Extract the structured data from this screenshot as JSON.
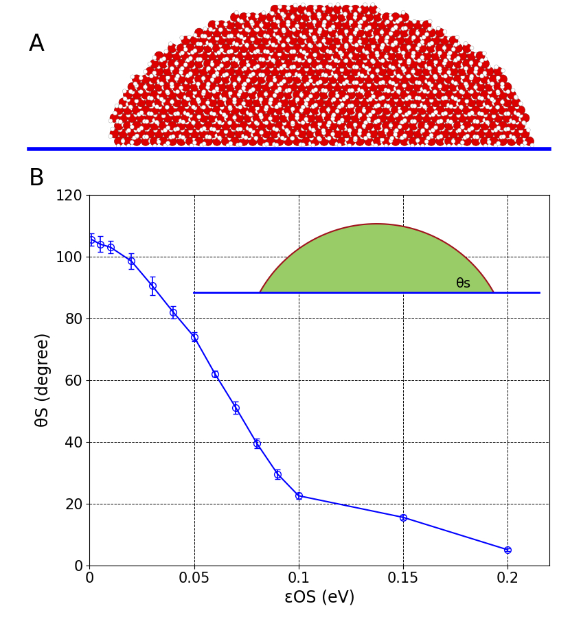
{
  "panel_labels": [
    "A",
    "B"
  ],
  "chart_data": {
    "type": "line",
    "xlabel": "εOS (eV)",
    "ylabel": "θS (degree)",
    "inset_label": "θs",
    "x": [
      0.001,
      0.005,
      0.01,
      0.02,
      0.03,
      0.04,
      0.05,
      0.06,
      0.07,
      0.08,
      0.09,
      0.1,
      0.15,
      0.2
    ],
    "series": [
      {
        "name": "θS",
        "color": "#0000ff",
        "marker": "circle",
        "line_style": "solid",
        "values": [
          105.5,
          104,
          103,
          98.5,
          90.5,
          82,
          74,
          62,
          51,
          39.5,
          29.5,
          22.5,
          15.5,
          5
        ],
        "errors": [
          2,
          2.5,
          2,
          2.5,
          3,
          2,
          1.5,
          1,
          2,
          1.5,
          1.5,
          1,
          0.8,
          0.5
        ]
      }
    ],
    "xlim": [
      0,
      0.22
    ],
    "xticks": [
      0,
      0.05,
      0.1,
      0.15,
      0.2
    ],
    "ylim": [
      0,
      120
    ],
    "yticks": [
      0,
      20,
      40,
      60,
      80,
      100,
      120
    ],
    "grid": true
  }
}
